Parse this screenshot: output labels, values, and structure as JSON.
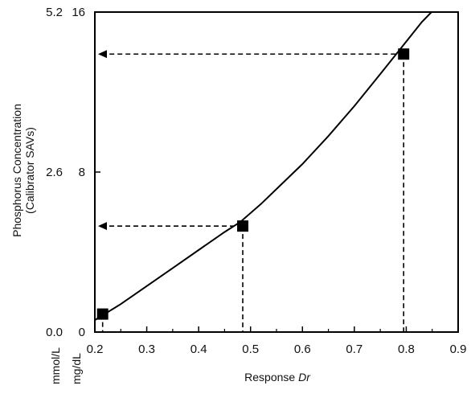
{
  "chart_data": {
    "type": "line",
    "xlabel_prefix": "Response ",
    "xlabel_italic": "Dr",
    "ylabel_line1": "Phosphorus Concentration",
    "ylabel_line2": "(Calibrator SAVs)",
    "xunit_left": "mmol/L",
    "xunit_right": "mg/dL",
    "xlim": [
      0.2,
      0.9
    ],
    "ylim_mgdl": [
      0,
      16
    ],
    "xticks": [
      "0.2",
      "0.3",
      "0.4",
      "0.5",
      "0.6",
      "0.7",
      "0.8",
      "0.9"
    ],
    "yticks_mgdl": [
      "0",
      "8",
      "16"
    ],
    "yticks_mmol": [
      "0.0",
      "2.6",
      "5.2"
    ],
    "curve": {
      "x": [
        0.2,
        0.25,
        0.3,
        0.35,
        0.4,
        0.45,
        0.48,
        0.52,
        0.56,
        0.6,
        0.65,
        0.7,
        0.75,
        0.79,
        0.83,
        0.86
      ],
      "y": [
        0.6,
        1.4,
        2.3,
        3.2,
        4.1,
        5.0,
        5.5,
        6.4,
        7.4,
        8.4,
        9.8,
        11.3,
        12.9,
        14.2,
        15.5,
        16.3
      ]
    },
    "points": [
      {
        "x": 0.215,
        "y": 0.9
      },
      {
        "x": 0.485,
        "y": 5.3
      },
      {
        "x": 0.795,
        "y": 13.9
      }
    ],
    "arrows_from_points": [
      1,
      2
    ],
    "colors": {
      "line": "#000000",
      "marker": "#000000",
      "background": "#ffffff"
    }
  }
}
